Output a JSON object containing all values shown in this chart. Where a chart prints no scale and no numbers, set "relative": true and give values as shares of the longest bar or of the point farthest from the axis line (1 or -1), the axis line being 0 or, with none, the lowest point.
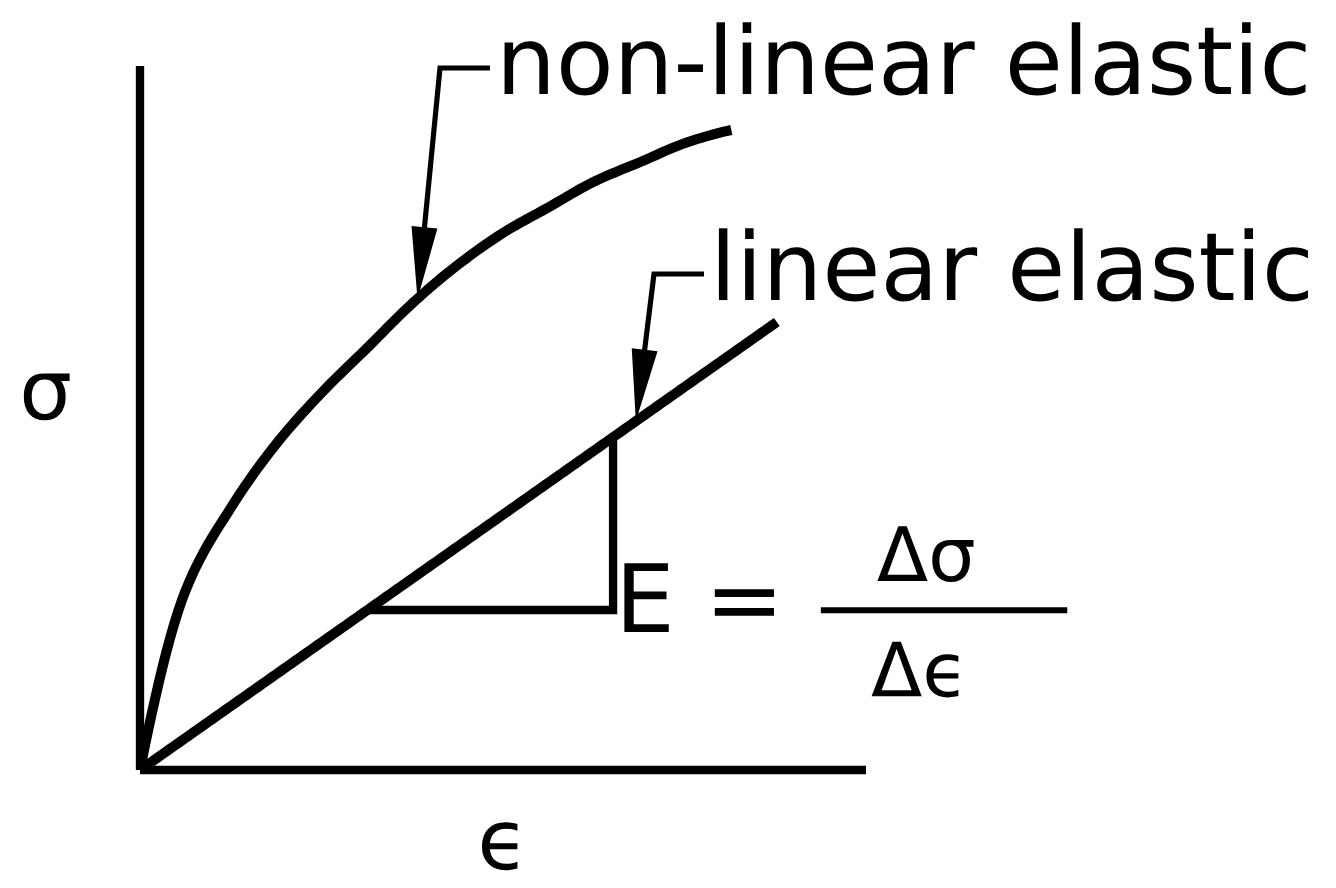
{
  "chart_data": {
    "type": "line",
    "relative": true,
    "xlabel": "ϵ",
    "ylabel": "σ",
    "categories": [
      null,
      null,
      null,
      null,
      null,
      null,
      null,
      null,
      null,
      null,
      null,
      null,
      null,
      null,
      null
    ],
    "series": [
      {
        "name": "non-linear elastic",
        "color": "#000000",
        "values": [
          0,
          0.28,
          0.41,
          0.51,
          0.59,
          0.66,
          0.73,
          0.79,
          0.84,
          0.88,
          0.92,
          0.95,
          0.98,
          1,
          null
        ]
      },
      {
        "name": "linear elastic",
        "color": "#000000",
        "values": [
          0,
          0.05,
          0.1,
          0.15,
          0.2,
          0.25,
          0.3,
          0.35,
          0.4,
          0.45,
          0.5,
          0.55,
          0.6,
          0.65,
          0.7
        ]
      }
    ],
    "annotations": [
      "E =",
      "Δσ",
      "Δϵ"
    ]
  }
}
